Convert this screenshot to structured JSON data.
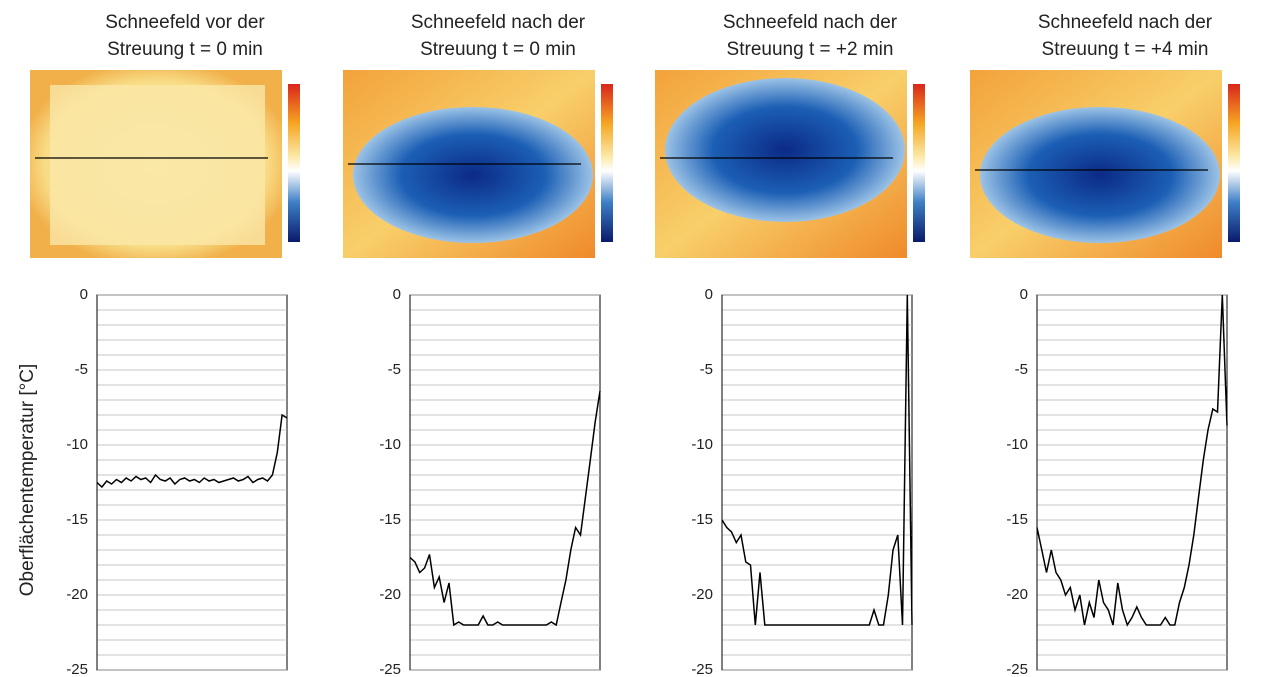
{
  "chart_data": [
    {
      "type": "line",
      "title": [
        "Schneefeld vor der",
        "Streuung t = 0 min"
      ],
      "ylabel": "Oberflächentemperatur  [°C]",
      "ylim": [
        -25,
        0
      ],
      "yticks": [
        0,
        -5,
        -10,
        -15,
        -20,
        -25
      ],
      "ygrid": [
        -1,
        -2,
        -3,
        -4,
        -6,
        -7,
        -8,
        -9,
        -11,
        -12,
        -13,
        -14,
        -16,
        -17,
        -18,
        -19,
        -21,
        -22,
        -23,
        -24
      ],
      "color": "#000000",
      "values": [
        -12.5,
        -12.8,
        -12.4,
        -12.6,
        -12.3,
        -12.5,
        -12.2,
        -12.4,
        -12.1,
        -12.3,
        -12.2,
        -12.5,
        -12.0,
        -12.3,
        -12.4,
        -12.2,
        -12.6,
        -12.3,
        -12.2,
        -12.4,
        -12.3,
        -12.5,
        -12.2,
        -12.4,
        -12.3,
        -12.5,
        -12.4,
        -12.3,
        -12.2,
        -12.4,
        -12.3,
        -12.1,
        -12.5,
        -12.3,
        -12.2,
        -12.4,
        -12.0,
        -10.5,
        -8.0,
        -8.2
      ]
    },
    {
      "type": "line",
      "title": [
        "Schneefeld nach der",
        "Streuung t = 0 min"
      ],
      "ylim": [
        -25,
        0
      ],
      "yticks": [
        0,
        -5,
        -10,
        -15,
        -20,
        -25
      ],
      "ygrid": [
        -1,
        -2,
        -3,
        -4,
        -6,
        -7,
        -8,
        -9,
        -11,
        -12,
        -13,
        -14,
        -16,
        -17,
        -18,
        -19,
        -21,
        -22,
        -23,
        -24
      ],
      "color": "#000000",
      "values": [
        -17.5,
        -17.8,
        -18.5,
        -18.2,
        -17.3,
        -19.5,
        -18.8,
        -20.5,
        -19.2,
        -22,
        -21.8,
        -22,
        -22,
        -22,
        -22,
        -21.4,
        -22,
        -22,
        -21.8,
        -22,
        -22,
        -22,
        -22,
        -22,
        -22,
        -22,
        -22,
        -22,
        -22,
        -21.8,
        -22,
        -20.5,
        -19,
        -17,
        -15.5,
        -16,
        -13.5,
        -11,
        -8.5,
        -6.4
      ]
    },
    {
      "type": "line",
      "title": [
        "Schneefeld nach der",
        "Streuung t = +2 min"
      ],
      "ylim": [
        -25,
        0
      ],
      "yticks": [
        0,
        -5,
        -10,
        -15,
        -20,
        -25
      ],
      "ygrid": [
        -1,
        -2,
        -3,
        -4,
        -6,
        -7,
        -8,
        -9,
        -11,
        -12,
        -13,
        -14,
        -16,
        -17,
        -18,
        -19,
        -21,
        -22,
        -23,
        -24
      ],
      "color": "#000000",
      "values": [
        -15,
        -15.5,
        -15.8,
        -16.5,
        -16,
        -17.8,
        -18,
        -22,
        -18.5,
        -22,
        -22,
        -22,
        -22,
        -22,
        -22,
        -22,
        -22,
        -22,
        -22,
        -22,
        -22,
        -22,
        -22,
        -22,
        -22,
        -22,
        -22,
        -22,
        -22,
        -22,
        -22,
        -22,
        -21,
        -22,
        -22,
        -20,
        -17,
        -16,
        -22,
        0,
        -22
      ]
    },
    {
      "type": "line",
      "title": [
        "Schneefeld nach der",
        "Streuung t = +4 min"
      ],
      "ylim": [
        -25,
        0
      ],
      "yticks": [
        0,
        -5,
        -10,
        -15,
        -20,
        -25
      ],
      "ygrid": [
        -1,
        -2,
        -3,
        -4,
        -6,
        -7,
        -8,
        -9,
        -11,
        -12,
        -13,
        -14,
        -16,
        -17,
        -18,
        -19,
        -21,
        -22,
        -23,
        -24
      ],
      "color": "#000000",
      "values": [
        -15.5,
        -17,
        -18.5,
        -17,
        -18.5,
        -19,
        -20,
        -19.5,
        -21,
        -20,
        -22,
        -20.5,
        -21.5,
        -19,
        -20.5,
        -21,
        -22,
        -19.2,
        -21,
        -22,
        -21.5,
        -20.8,
        -21.5,
        -22,
        -22,
        -22,
        -22,
        -21.5,
        -22,
        -22,
        -20.5,
        -19.5,
        -18,
        -16,
        -13.5,
        -11,
        -9,
        -7.6,
        -7.8,
        0,
        -8.7
      ]
    }
  ]
}
